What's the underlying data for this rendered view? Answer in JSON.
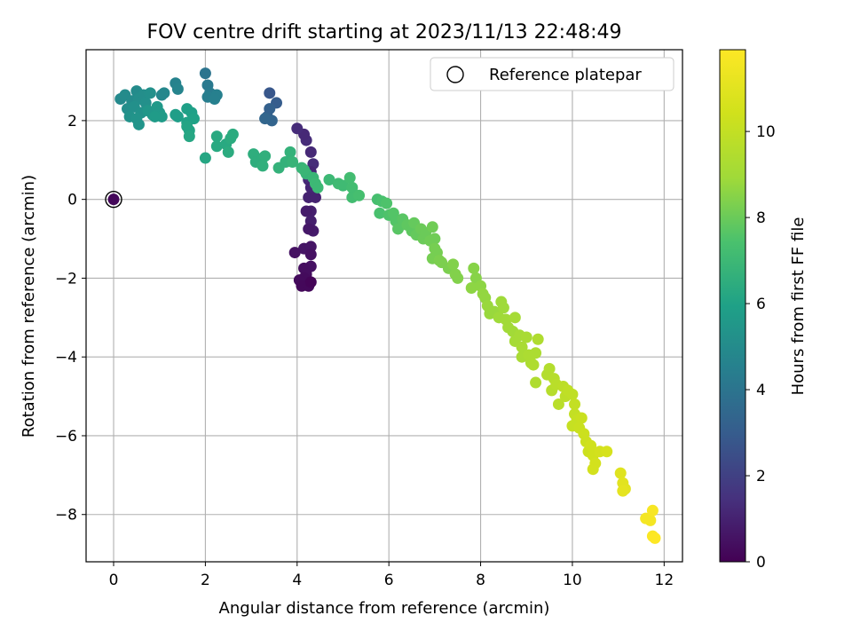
{
  "chart_data": {
    "type": "scatter",
    "title": "FOV centre drift starting at 2023/11/13 22:48:49",
    "xlabel": "Angular distance from reference (arcmin)",
    "ylabel": "Rotation from reference (arcmin)",
    "xlim": [
      -0.6,
      12.4
    ],
    "ylim": [
      -9.2,
      3.8
    ],
    "xticks": [
      0,
      2,
      4,
      6,
      8,
      10,
      12
    ],
    "yticks": [
      -8,
      -6,
      -4,
      -2,
      0,
      2
    ],
    "grid": true,
    "legend": {
      "position": "top-right",
      "label": "Reference platepar"
    },
    "reference_point": {
      "x": 0,
      "y": 0
    },
    "colorbar": {
      "label": "Hours from first FF file",
      "colormap": "viridis",
      "range": [
        0,
        11.9
      ],
      "ticks": [
        0,
        2,
        4,
        6,
        8,
        10
      ]
    },
    "points": [
      [
        0.0,
        0.0,
        0.2
      ],
      [
        4.3,
        1.2,
        1.2
      ],
      [
        4.2,
        1.5,
        1.3
      ],
      [
        4.15,
        1.65,
        1.2
      ],
      [
        4.0,
        1.8,
        1.3
      ],
      [
        4.35,
        0.9,
        1.3
      ],
      [
        4.3,
        0.7,
        1.1
      ],
      [
        4.25,
        0.5,
        1.2
      ],
      [
        4.3,
        0.3,
        1.1
      ],
      [
        4.25,
        0.05,
        1.0
      ],
      [
        4.4,
        0.05,
        1.0
      ],
      [
        4.3,
        -0.3,
        0.9
      ],
      [
        4.2,
        -0.3,
        0.8
      ],
      [
        4.3,
        -0.55,
        0.9
      ],
      [
        4.35,
        -0.8,
        0.8
      ],
      [
        4.25,
        -0.75,
        0.7
      ],
      [
        4.15,
        -1.25,
        0.6
      ],
      [
        4.3,
        -1.2,
        0.6
      ],
      [
        4.3,
        -1.4,
        0.5
      ],
      [
        4.3,
        -1.7,
        0.5
      ],
      [
        3.95,
        -1.35,
        0.5
      ],
      [
        4.15,
        -1.75,
        0.4
      ],
      [
        4.2,
        -1.9,
        0.4
      ],
      [
        4.15,
        -2.0,
        0.3
      ],
      [
        4.05,
        -2.05,
        0.3
      ],
      [
        4.1,
        -2.2,
        0.2
      ],
      [
        4.25,
        -2.2,
        0.2
      ],
      [
        4.3,
        -2.1,
        0.1
      ],
      [
        3.4,
        2.7,
        2.8
      ],
      [
        3.55,
        2.45,
        3.0
      ],
      [
        3.4,
        2.3,
        3.2
      ],
      [
        3.35,
        2.1,
        3.2
      ],
      [
        3.45,
        2.0,
        3.3
      ],
      [
        3.3,
        2.05,
        3.4
      ],
      [
        2.0,
        3.2,
        4.0
      ],
      [
        2.05,
        2.9,
        4.2
      ],
      [
        2.1,
        2.7,
        4.3
      ],
      [
        2.05,
        2.6,
        4.4
      ],
      [
        2.25,
        2.65,
        4.5
      ],
      [
        2.2,
        2.55,
        4.5
      ],
      [
        1.35,
        2.95,
        4.6
      ],
      [
        1.4,
        2.8,
        4.7
      ],
      [
        1.1,
        2.7,
        4.8
      ],
      [
        1.05,
        2.65,
        4.8
      ],
      [
        0.15,
        2.55,
        4.9
      ],
      [
        0.25,
        2.65,
        5.0
      ],
      [
        0.4,
        2.5,
        5.0
      ],
      [
        0.5,
        2.75,
        5.0
      ],
      [
        0.55,
        2.55,
        5.1
      ],
      [
        0.65,
        2.65,
        5.1
      ],
      [
        0.7,
        2.45,
        5.2
      ],
      [
        0.8,
        2.7,
        5.2
      ],
      [
        0.3,
        2.3,
        5.1
      ],
      [
        0.45,
        2.35,
        5.2
      ],
      [
        0.6,
        2.2,
        5.3
      ],
      [
        0.35,
        2.1,
        5.3
      ],
      [
        0.5,
        2.05,
        5.4
      ],
      [
        0.55,
        1.9,
        5.4
      ],
      [
        0.75,
        2.25,
        5.5
      ],
      [
        0.85,
        2.15,
        5.5
      ],
      [
        0.95,
        2.35,
        5.6
      ],
      [
        1.0,
        2.2,
        5.6
      ],
      [
        1.05,
        2.1,
        5.7
      ],
      [
        0.9,
        2.1,
        5.7
      ],
      [
        1.35,
        2.15,
        5.8
      ],
      [
        1.4,
        2.1,
        5.8
      ],
      [
        1.6,
        2.3,
        5.9
      ],
      [
        1.7,
        2.2,
        5.9
      ],
      [
        1.75,
        2.05,
        6.0
      ],
      [
        1.6,
        1.95,
        6.0
      ],
      [
        1.65,
        1.75,
        6.1
      ],
      [
        1.6,
        1.85,
        6.1
      ],
      [
        1.65,
        1.6,
        6.2
      ],
      [
        2.0,
        1.05,
        6.2
      ],
      [
        2.25,
        1.35,
        6.3
      ],
      [
        2.25,
        1.6,
        6.3
      ],
      [
        2.45,
        1.4,
        6.3
      ],
      [
        2.5,
        1.2,
        6.4
      ],
      [
        2.55,
        1.55,
        6.4
      ],
      [
        2.6,
        1.65,
        6.4
      ],
      [
        3.05,
        1.15,
        6.5
      ],
      [
        3.1,
        0.95,
        6.5
      ],
      [
        3.25,
        1.05,
        6.5
      ],
      [
        3.3,
        1.1,
        6.6
      ],
      [
        3.25,
        0.85,
        6.6
      ],
      [
        3.6,
        0.8,
        6.7
      ],
      [
        3.75,
        0.95,
        6.7
      ],
      [
        3.85,
        1.2,
        6.7
      ],
      [
        3.9,
        0.95,
        6.8
      ],
      [
        4.1,
        0.8,
        6.8
      ],
      [
        4.2,
        0.65,
        6.8
      ],
      [
        4.15,
        0.75,
        6.9
      ],
      [
        4.35,
        0.55,
        6.9
      ],
      [
        4.4,
        0.4,
        7.0
      ],
      [
        4.45,
        0.3,
        7.0
      ],
      [
        4.7,
        0.5,
        7.0
      ],
      [
        4.9,
        0.4,
        7.1
      ],
      [
        5.0,
        0.35,
        7.1
      ],
      [
        5.15,
        0.55,
        7.2
      ],
      [
        5.2,
        0.3,
        7.2
      ],
      [
        5.2,
        0.05,
        7.2
      ],
      [
        5.35,
        0.1,
        7.3
      ],
      [
        5.75,
        0.0,
        7.3
      ],
      [
        5.8,
        -0.35,
        7.4
      ],
      [
        5.85,
        -0.05,
        7.4
      ],
      [
        5.95,
        -0.1,
        7.5
      ],
      [
        6.0,
        -0.4,
        7.5
      ],
      [
        6.1,
        -0.35,
        7.6
      ],
      [
        6.15,
        -0.55,
        7.6
      ],
      [
        6.2,
        -0.75,
        7.7
      ],
      [
        6.3,
        -0.5,
        7.7
      ],
      [
        6.4,
        -0.65,
        7.8
      ],
      [
        6.5,
        -0.8,
        7.8
      ],
      [
        6.55,
        -0.6,
        7.9
      ],
      [
        6.6,
        -0.9,
        7.9
      ],
      [
        6.7,
        -0.75,
        8.0
      ],
      [
        6.75,
        -1.0,
        8.0
      ],
      [
        6.8,
        -0.85,
        8.0
      ],
      [
        6.9,
        -1.05,
        8.1
      ],
      [
        6.95,
        -0.7,
        8.1
      ],
      [
        7.0,
        -1.0,
        8.1
      ],
      [
        7.0,
        -1.25,
        8.2
      ],
      [
        6.95,
        -1.5,
        8.2
      ],
      [
        7.05,
        -1.35,
        8.2
      ],
      [
        7.1,
        -1.55,
        8.3
      ],
      [
        7.15,
        -1.6,
        8.3
      ],
      [
        7.3,
        -1.75,
        8.3
      ],
      [
        7.4,
        -1.65,
        8.4
      ],
      [
        7.45,
        -1.9,
        8.4
      ],
      [
        7.5,
        -2.0,
        8.4
      ],
      [
        7.85,
        -1.75,
        8.5
      ],
      [
        7.9,
        -2.0,
        8.5
      ],
      [
        7.8,
        -2.25,
        8.6
      ],
      [
        8.0,
        -2.2,
        8.6
      ],
      [
        8.05,
        -2.4,
        8.7
      ],
      [
        8.1,
        -2.5,
        8.7
      ],
      [
        8.15,
        -2.7,
        8.8
      ],
      [
        8.2,
        -2.9,
        8.8
      ],
      [
        8.3,
        -2.85,
        8.8
      ],
      [
        8.4,
        -3.0,
        8.9
      ],
      [
        8.45,
        -2.6,
        8.9
      ],
      [
        8.5,
        -2.75,
        8.9
      ],
      [
        8.55,
        -3.05,
        9.0
      ],
      [
        8.6,
        -3.25,
        9.0
      ],
      [
        8.7,
        -3.35,
        9.0
      ],
      [
        8.75,
        -3.0,
        9.1
      ],
      [
        8.75,
        -3.6,
        9.1
      ],
      [
        8.85,
        -3.45,
        9.1
      ],
      [
        8.9,
        -3.75,
        9.2
      ],
      [
        9.0,
        -3.5,
        9.2
      ],
      [
        8.9,
        -4.0,
        9.2
      ],
      [
        9.05,
        -3.95,
        9.3
      ],
      [
        9.1,
        -4.15,
        9.3
      ],
      [
        9.2,
        -3.9,
        9.3
      ],
      [
        9.15,
        -4.2,
        9.4
      ],
      [
        9.25,
        -3.55,
        9.4
      ],
      [
        9.2,
        -4.65,
        9.4
      ],
      [
        9.45,
        -4.45,
        9.5
      ],
      [
        9.5,
        -4.3,
        9.5
      ],
      [
        9.6,
        -4.55,
        9.6
      ],
      [
        9.55,
        -4.85,
        9.6
      ],
      [
        9.65,
        -4.7,
        9.7
      ],
      [
        9.7,
        -5.2,
        9.7
      ],
      [
        9.8,
        -4.75,
        9.8
      ],
      [
        9.85,
        -5.0,
        9.8
      ],
      [
        9.9,
        -4.85,
        9.9
      ],
      [
        10.0,
        -4.95,
        9.9
      ],
      [
        10.05,
        -5.2,
        10.0
      ],
      [
        10.05,
        -5.45,
        10.0
      ],
      [
        10.1,
        -5.6,
        10.1
      ],
      [
        10.0,
        -5.75,
        10.1
      ],
      [
        10.15,
        -5.8,
        10.2
      ],
      [
        10.2,
        -5.55,
        10.2
      ],
      [
        10.25,
        -5.95,
        10.3
      ],
      [
        10.3,
        -6.15,
        10.3
      ],
      [
        10.35,
        -6.4,
        10.3
      ],
      [
        10.4,
        -6.25,
        10.4
      ],
      [
        10.45,
        -6.5,
        10.4
      ],
      [
        10.5,
        -6.7,
        10.5
      ],
      [
        10.45,
        -6.85,
        10.5
      ],
      [
        10.6,
        -6.4,
        10.5
      ],
      [
        10.75,
        -6.4,
        10.6
      ],
      [
        11.05,
        -6.95,
        10.9
      ],
      [
        11.1,
        -7.2,
        11.0
      ],
      [
        11.15,
        -7.35,
        11.0
      ],
      [
        11.1,
        -7.4,
        11.1
      ],
      [
        11.6,
        -8.1,
        11.6
      ],
      [
        11.7,
        -8.15,
        11.6
      ],
      [
        11.75,
        -7.9,
        11.7
      ],
      [
        11.75,
        -8.55,
        11.8
      ],
      [
        11.8,
        -8.6,
        11.9
      ]
    ]
  }
}
